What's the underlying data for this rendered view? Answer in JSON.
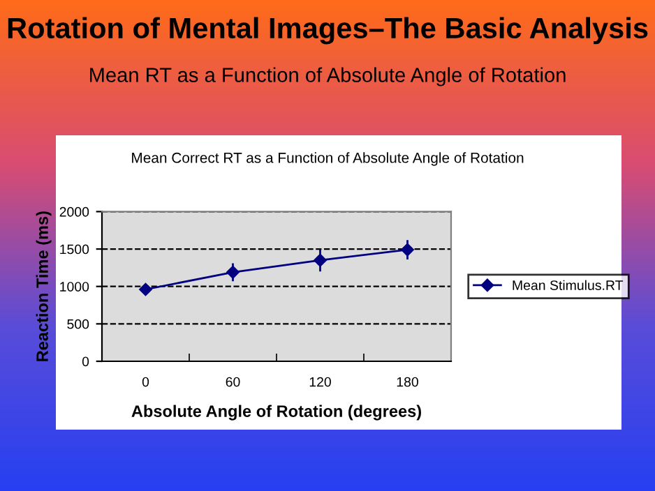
{
  "chart_data": {
    "type": "line",
    "title": "Rotation of Mental Images–The Basic Analysis",
    "subtitle": "Mean RT as a Function of Absolute Angle of Rotation",
    "annotations": [
      "Mean Correct RT as a Function of Absolute Angle of Rotation"
    ],
    "xlabel": "Absolute Angle of Rotation (degrees)",
    "ylabel": "Reaction Time (ms)",
    "categories": [
      "0",
      "60",
      "120",
      "180"
    ],
    "series": [
      {
        "name": "Mean Stimulus.RT",
        "color": "#000080",
        "values": [
          960,
          1190,
          1350,
          1490
        ],
        "errors": [
          50,
          120,
          150,
          130
        ]
      }
    ],
    "ylim": [
      0,
      2000
    ],
    "yticks": [
      0,
      500,
      1000,
      1500,
      2000
    ],
    "grid": "y",
    "legend": "right",
    "marker": "diamond",
    "line_style": "solid"
  }
}
